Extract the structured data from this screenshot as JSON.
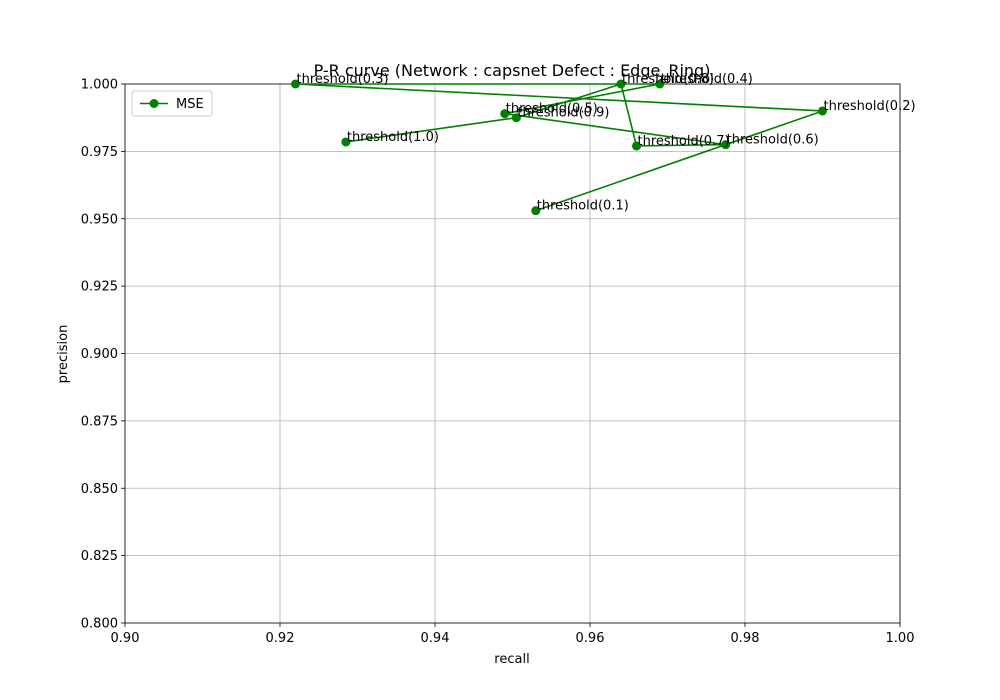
{
  "chart_data": {
    "type": "line",
    "title": "P-R curve (Network : capsnet Defect : Edge_Ring)",
    "xlabel": "recall",
    "ylabel": "precision",
    "xlim": [
      0.9,
      1.0
    ],
    "ylim": [
      0.8,
      1.0
    ],
    "xticks": [
      "0.90",
      "0.92",
      "0.94",
      "0.96",
      "0.98",
      "1.00"
    ],
    "yticks": [
      "0.800",
      "0.825",
      "0.850",
      "0.875",
      "0.900",
      "0.925",
      "0.950",
      "0.975",
      "1.000"
    ],
    "grid": true,
    "legend": {
      "placement": "top-left"
    },
    "series": [
      {
        "name": "MSE",
        "color": "#008000",
        "marker": "circle",
        "points": [
          {
            "x": 0.953,
            "y": 0.953,
            "label": "threshold(0.1)"
          },
          {
            "x": 0.99,
            "y": 0.99,
            "label": "threshold(0.2)"
          },
          {
            "x": 0.922,
            "y": 1.0,
            "label": "threshold(0.3)"
          },
          {
            "x": 0.969,
            "y": 1.0,
            "label": "threshold(0.4)"
          },
          {
            "x": 0.949,
            "y": 0.989,
            "label": "threshold(0.5)"
          },
          {
            "x": 0.9775,
            "y": 0.9775,
            "label": "threshold(0.6)"
          },
          {
            "x": 0.966,
            "y": 0.977,
            "label": "threshold(0.7)"
          },
          {
            "x": 0.964,
            "y": 1.0,
            "label": "threshold(0.8)"
          },
          {
            "x": 0.9505,
            "y": 0.9875,
            "label": "threshold(0.9)"
          },
          {
            "x": 0.9285,
            "y": 0.9785,
            "label": "threshold(1.0)"
          }
        ]
      }
    ]
  }
}
